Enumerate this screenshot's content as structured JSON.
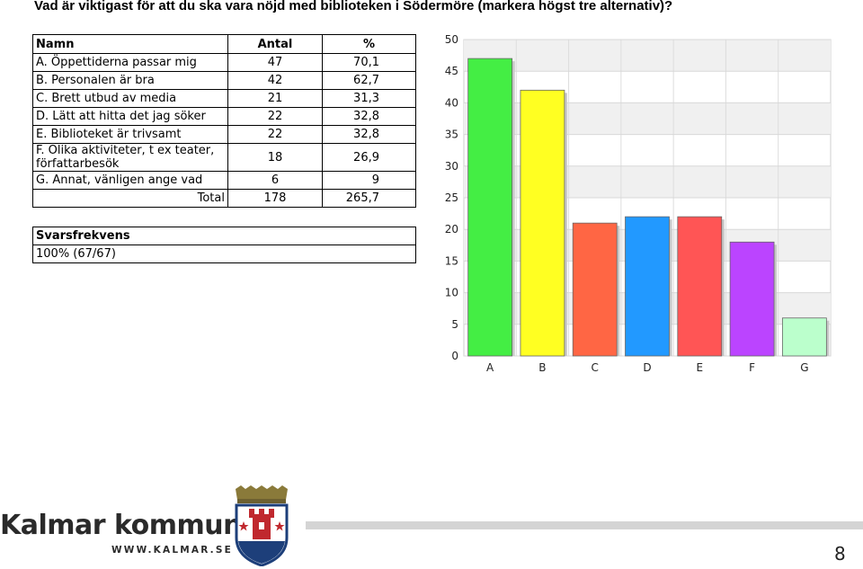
{
  "question": "Vad är viktigast för att du ska vara nöjd med biblioteken i Södermöre (markera högst tre alternativ)?",
  "table": {
    "headers": [
      "Namn",
      "Antal",
      "%"
    ],
    "rows": [
      {
        "label": "A. Öppettiderna passar mig",
        "count": "47",
        "pct": "70,1"
      },
      {
        "label": "B. Personalen är bra",
        "count": "42",
        "pct": "62,7"
      },
      {
        "label": "C. Brett utbud av media",
        "count": "21",
        "pct": "31,3"
      },
      {
        "label": "D. Lätt att hitta det jag söker",
        "count": "22",
        "pct": "32,8"
      },
      {
        "label": "E. Biblioteket är trivsamt",
        "count": "22",
        "pct": "32,8"
      },
      {
        "label": "F. Olika aktiviteter, t ex teater, författarbesök",
        "count": "18",
        "pct": "26,9"
      },
      {
        "label": "G. Annat, vänligen ange vad",
        "count": "6",
        "pct": "9"
      }
    ],
    "total": {
      "label": "Total",
      "count": "178",
      "pct": "265,7"
    }
  },
  "response": {
    "header": "Svarsfrekvens",
    "value": "100% (67/67)"
  },
  "chart_data": {
    "type": "bar",
    "categories": [
      "A",
      "B",
      "C",
      "D",
      "E",
      "F",
      "G"
    ],
    "values": [
      47,
      42,
      21,
      22,
      22,
      18,
      6
    ],
    "colors": [
      "#44ee44",
      "#ffff22",
      "#ff6644",
      "#2299ff",
      "#ff5555",
      "#bb44ff",
      "#bbffcc"
    ],
    "ylim": [
      0,
      50
    ],
    "yticks": [
      0,
      5,
      10,
      15,
      20,
      25,
      30,
      35,
      40,
      45,
      50
    ],
    "grid": true,
    "title": "",
    "xlabel": "",
    "ylabel": ""
  },
  "footer": {
    "brand": "Kalmar kommun",
    "url": "WWW.KALMAR.SE",
    "page": "8"
  }
}
